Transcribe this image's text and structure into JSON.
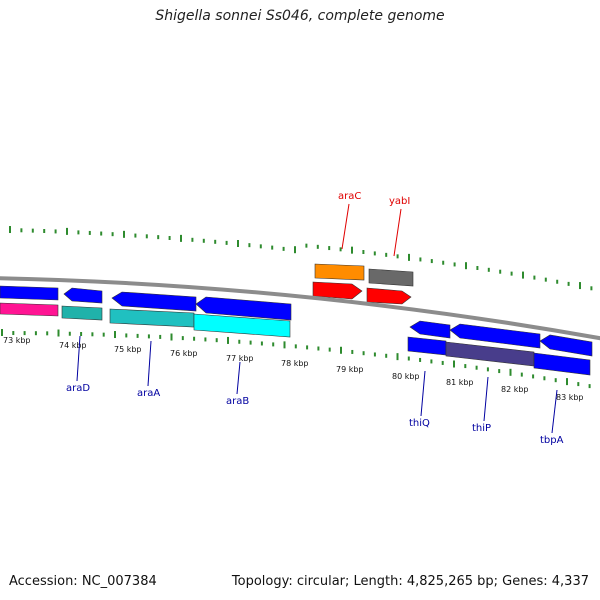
{
  "header": {
    "title": "Shigella sonnei Ss046, complete genome"
  },
  "footer": {
    "accession": "Accession: NC_007384",
    "summary": "Topology: circular; Length: 4,825,265 bp; Genes: 4,337"
  },
  "colors": {
    "backbone": "#8c8c8c",
    "tick": "#2e8b2e",
    "forward_label": "#e00000",
    "reverse_label": "#0000a0"
  },
  "scale_labels": [
    "73 kbp",
    "74 kbp",
    "75 kbp",
    "76 kbp",
    "77 kbp",
    "78 kbp",
    "79 kbp",
    "80 kbp",
    "81 kbp",
    "82 kbp",
    "83 kbp"
  ],
  "gene_labels": [
    {
      "name": "araC",
      "strand": "forward"
    },
    {
      "name": "yabI",
      "strand": "forward"
    },
    {
      "name": "araD",
      "strand": "reverse"
    },
    {
      "name": "araA",
      "strand": "reverse"
    },
    {
      "name": "araB",
      "strand": "reverse"
    },
    {
      "name": "thiQ",
      "strand": "reverse"
    },
    {
      "name": "thiP",
      "strand": "reverse"
    },
    {
      "name": "tbpA",
      "strand": "reverse"
    }
  ],
  "features": [
    {
      "id": "f1",
      "color": "#0000ff"
    },
    {
      "id": "f2",
      "color": "#ff1493"
    },
    {
      "id": "araD-cds",
      "color": "#0000ff"
    },
    {
      "id": "araD-bar",
      "color": "#20b2aa"
    },
    {
      "id": "araA-cds",
      "color": "#0000ff"
    },
    {
      "id": "araA-bar",
      "color": "#20c0c0"
    },
    {
      "id": "araB-cds",
      "color": "#0000ff"
    },
    {
      "id": "araB-bar",
      "color": "#00ffff"
    },
    {
      "id": "araC-top",
      "color": "#ff8c00"
    },
    {
      "id": "araC-cds",
      "color": "#ff0000"
    },
    {
      "id": "yabI-top",
      "color": "#696969"
    },
    {
      "id": "yabI-cds",
      "color": "#ff0000"
    },
    {
      "id": "thiQ-cds",
      "color": "#0000ff"
    },
    {
      "id": "thiQ-bar",
      "color": "#0000ff"
    },
    {
      "id": "thiP-cds",
      "color": "#0000ff"
    },
    {
      "id": "thiP-bar",
      "color": "#483d8b"
    },
    {
      "id": "tbpA-cds",
      "color": "#0000ff"
    },
    {
      "id": "tbpA-bar",
      "color": "#0000ff"
    }
  ]
}
